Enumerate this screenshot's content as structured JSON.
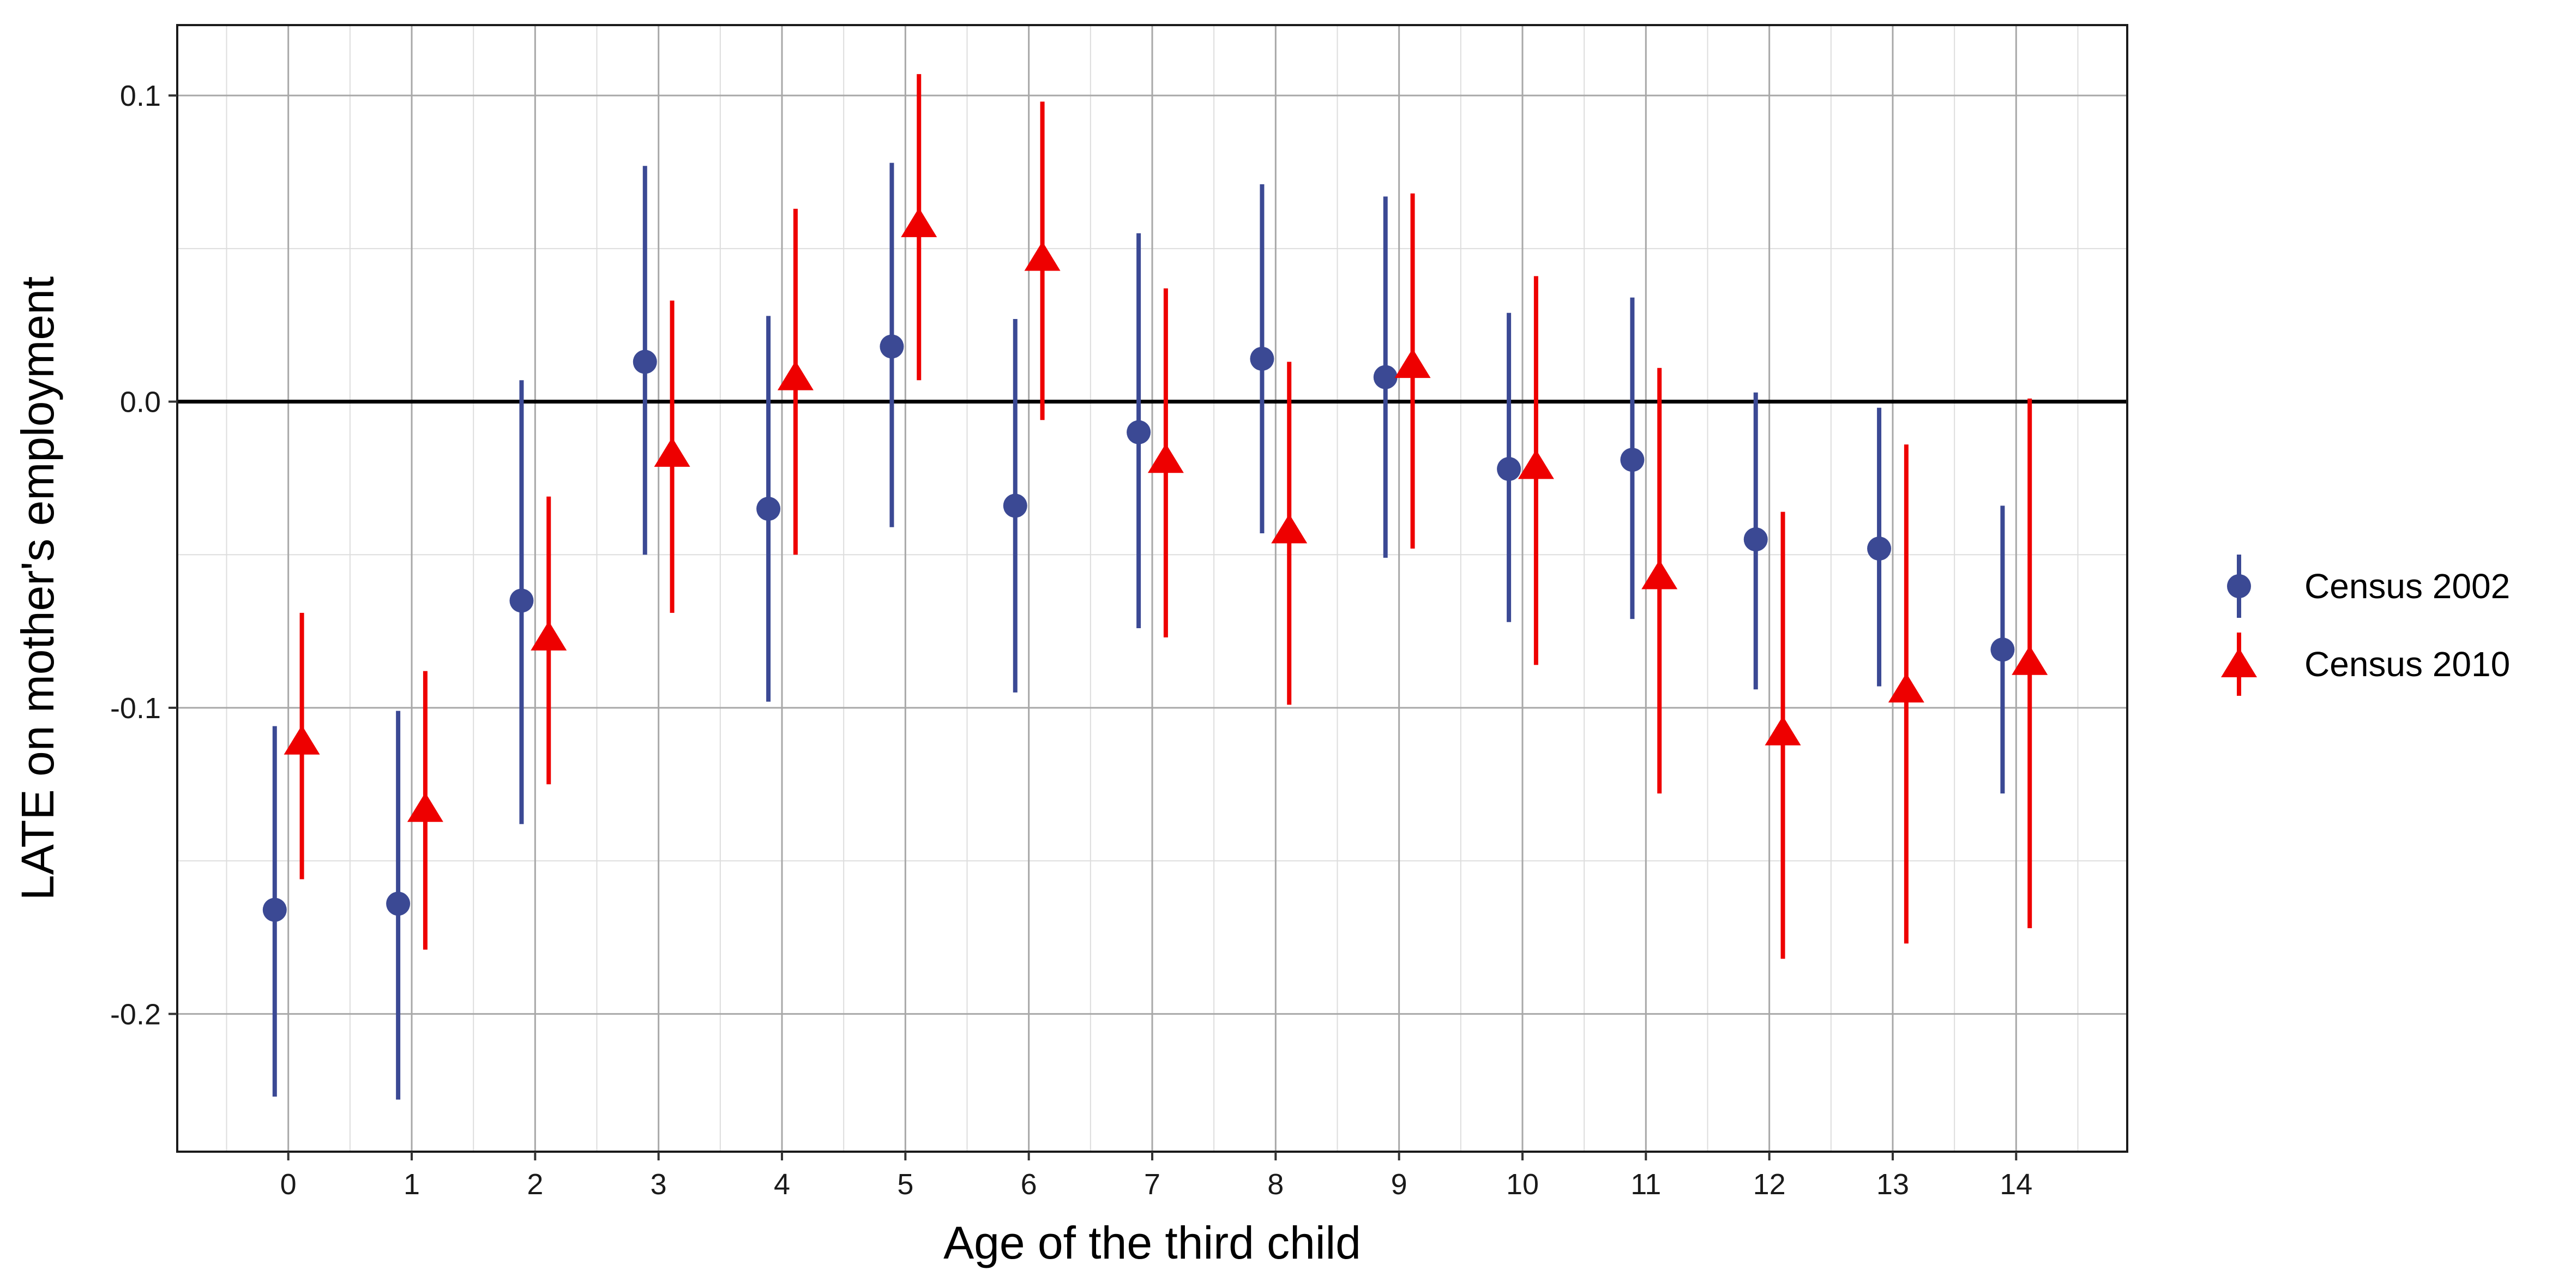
{
  "chart_data": {
    "type": "scatter",
    "xlabel": "Age of the third child",
    "ylabel": "LATE on mother's employment",
    "categories": [
      "0",
      "1",
      "2",
      "3",
      "4",
      "5",
      "6",
      "7",
      "8",
      "9",
      "10",
      "11",
      "12",
      "13",
      "14"
    ],
    "ylim": [
      -0.245,
      0.123
    ],
    "yticks": [
      0.1,
      0.0,
      -0.1,
      -0.2
    ],
    "ytick_labels": [
      "0.1",
      "0.0",
      "-0.1",
      "-0.2"
    ],
    "reference_line": 0.0,
    "grid": true,
    "legend_position": "right",
    "series": [
      {
        "name": "Census 2002",
        "color": "#3b4994",
        "marker": "circle",
        "estimate": [
          -0.166,
          -0.164,
          -0.065,
          0.013,
          -0.035,
          0.018,
          -0.034,
          -0.01,
          0.014,
          0.008,
          -0.022,
          -0.019,
          -0.045,
          -0.048,
          -0.081
        ],
        "ci_low": [
          -0.227,
          -0.228,
          -0.138,
          -0.05,
          -0.098,
          -0.041,
          -0.095,
          -0.074,
          -0.043,
          -0.051,
          -0.072,
          -0.071,
          -0.094,
          -0.093,
          -0.128
        ],
        "ci_high": [
          -0.106,
          -0.101,
          0.007,
          0.077,
          0.028,
          0.078,
          0.027,
          0.055,
          0.071,
          0.067,
          0.029,
          0.034,
          0.003,
          -0.002,
          -0.034
        ]
      },
      {
        "name": "Census 2010",
        "color": "#ee0000",
        "marker": "triangle",
        "estimate": [
          -0.111,
          -0.133,
          -0.077,
          -0.017,
          0.008,
          0.058,
          0.047,
          -0.019,
          -0.042,
          0.012,
          -0.021,
          -0.057,
          -0.108,
          -0.094,
          -0.085
        ],
        "ci_low": [
          -0.156,
          -0.179,
          -0.125,
          -0.069,
          -0.05,
          0.007,
          -0.006,
          -0.077,
          -0.099,
          -0.048,
          -0.086,
          -0.128,
          -0.182,
          -0.177,
          -0.172
        ],
        "ci_high": [
          -0.069,
          -0.088,
          -0.031,
          0.033,
          0.063,
          0.107,
          0.098,
          0.037,
          0.013,
          0.068,
          0.041,
          0.011,
          -0.036,
          -0.014,
          0.001
        ]
      }
    ]
  }
}
